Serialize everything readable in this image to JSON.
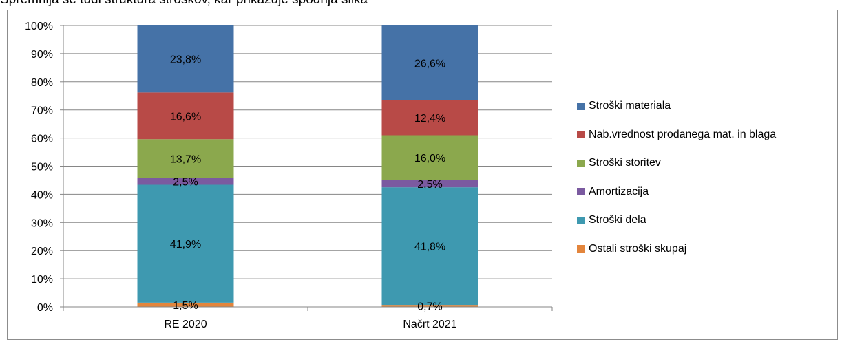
{
  "heading": "Spremnija se tudi struktura stroškov, kar prikazuje spodnja slika",
  "chart_data": {
    "type": "bar",
    "stacked": true,
    "percent_stacked": true,
    "categories": [
      "RE 2020",
      "Načrt 2021"
    ],
    "y_tick_labels": [
      "0%",
      "10%",
      "20%",
      "30%",
      "40%",
      "50%",
      "60%",
      "70%",
      "80%",
      "90%",
      "100%"
    ],
    "ylim": [
      0,
      100
    ],
    "grid": true,
    "legend_position": "right",
    "series": [
      {
        "name": "Ostali stroški skupaj",
        "color": "#e3853c",
        "values": [
          1.5,
          0.7
        ],
        "labels": [
          "1,5%",
          "0,7%"
        ]
      },
      {
        "name": "Stroški dela",
        "color": "#3e99b0",
        "values": [
          41.9,
          41.8
        ],
        "labels": [
          "41,9%",
          "41,8%"
        ]
      },
      {
        "name": "Amortizacija",
        "color": "#7b5aa0",
        "values": [
          2.5,
          2.5
        ],
        "labels": [
          "2,5%",
          "2,5%"
        ]
      },
      {
        "name": "Stroški storitev",
        "color": "#8ba84d",
        "values": [
          13.7,
          16.0
        ],
        "labels": [
          "13,7%",
          "16,0%"
        ]
      },
      {
        "name": "Nab.vrednost prodanega mat. in blaga",
        "color": "#b84a47",
        "values": [
          16.6,
          12.4
        ],
        "labels": [
          "16,6%",
          "12,4%"
        ]
      },
      {
        "name": "Stroški materiala",
        "color": "#4572a7",
        "values": [
          23.8,
          26.6
        ],
        "labels": [
          "23,8%",
          "26,6%"
        ]
      }
    ]
  }
}
